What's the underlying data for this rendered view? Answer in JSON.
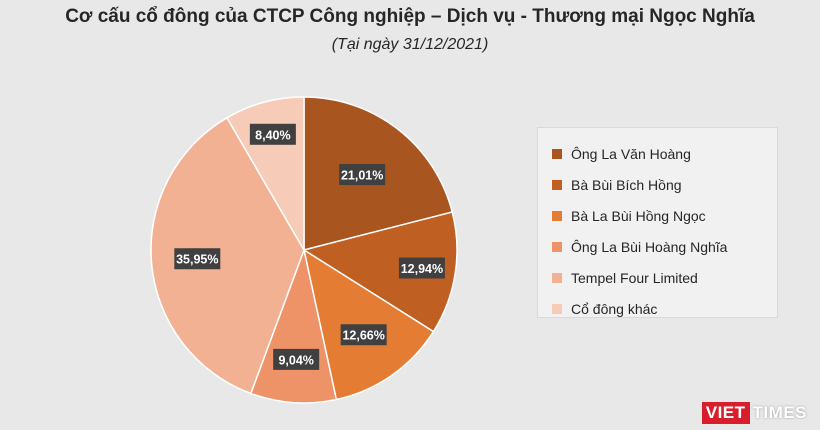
{
  "header": {
    "title": "Cơ cấu cổ đông của CTCP Công nghiệp – Dịch vụ - Thương mại Ngọc Nghĩa",
    "subtitle": "(Tại ngày 31/12/2021)"
  },
  "chart_data": {
    "type": "pie",
    "title": "Cơ cấu cổ đông của CTCP Công nghiệp – Dịch vụ - Thương mại Ngọc Nghĩa",
    "subtitle": "(Tại ngày 31/12/2021)",
    "categories": [
      "Ông La Văn Hoàng",
      "Bà Bùi Bích Hồng",
      "Bà La Bùi Hồng Ngọc",
      "Ông La Bùi Hoàng Nghĩa",
      "Tempel Four Limited",
      "Cổ đông khác"
    ],
    "values": [
      21.01,
      12.94,
      12.66,
      9.04,
      35.95,
      8.4
    ],
    "data_labels": [
      "21,01%",
      "12,94%",
      "12,66%",
      "9,04%",
      "35,95%",
      "8,40%"
    ],
    "colors": [
      "#a85520",
      "#c05f22",
      "#e57c33",
      "#ee9268",
      "#f2b193",
      "#f6cbb8"
    ],
    "legend_position": "right",
    "start_angle": "12 o'clock, clockwise"
  },
  "logo": {
    "part1": "VIET",
    "part2": "TIMES"
  }
}
